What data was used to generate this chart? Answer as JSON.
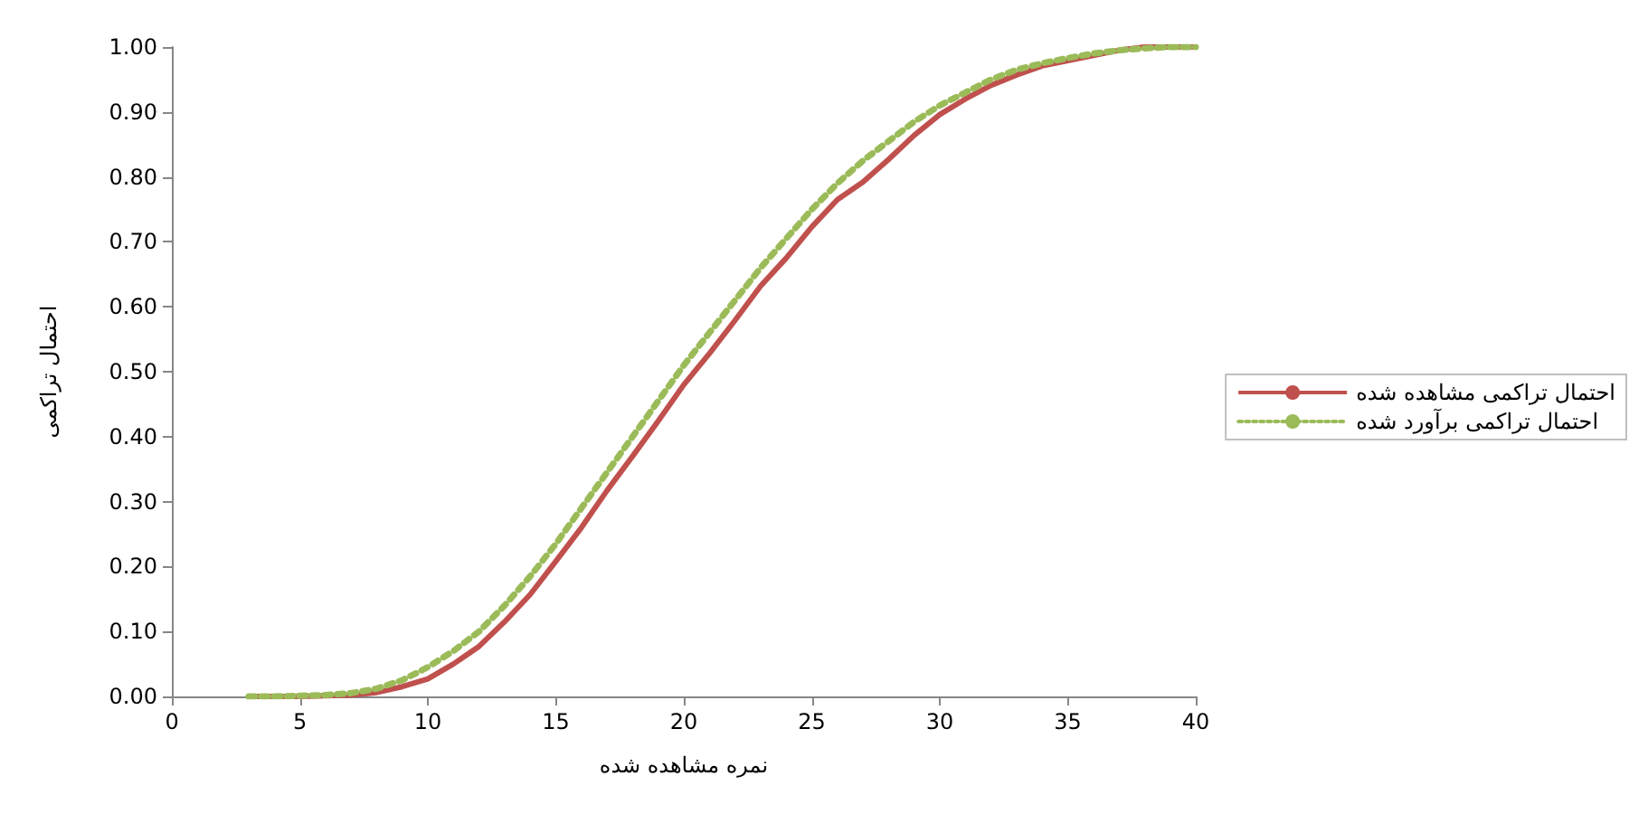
{
  "chart_data": {
    "type": "line",
    "xlabel": "نمره مشاهده شده",
    "ylabel": "احتمال تراکمی",
    "xlim": [
      0,
      40
    ],
    "xticks": [
      0,
      5,
      10,
      15,
      20,
      25,
      30,
      35,
      40
    ],
    "ylim": [
      0,
      1
    ],
    "yticks": [
      {
        "value": 0,
        "label": "0.00"
      },
      {
        "value": 0.1,
        "label": "0.10"
      },
      {
        "value": 0.2,
        "label": "0.20"
      },
      {
        "value": 0.3,
        "label": "0.30"
      },
      {
        "value": 0.4,
        "label": "0.40"
      },
      {
        "value": 0.5,
        "label": "0.50"
      },
      {
        "value": 0.6,
        "label": "0.60"
      },
      {
        "value": 0.7,
        "label": "0.70"
      },
      {
        "value": 0.8,
        "label": "0.80"
      },
      {
        "value": 0.9,
        "label": "0.90"
      },
      {
        "value": 1,
        "label": "1.00"
      }
    ],
    "grid": false,
    "legend": "right",
    "marker": "none",
    "x": [
      3,
      4,
      5,
      6,
      7,
      8,
      9,
      10,
      11,
      12,
      13,
      14,
      15,
      16,
      17,
      18,
      19,
      20,
      21,
      22,
      23,
      24,
      25,
      26,
      27,
      28,
      29,
      30,
      31,
      32,
      33,
      34,
      35,
      36,
      37,
      38,
      39,
      40
    ],
    "series": [
      {
        "name": "احتمال تراکمی مشاهده شده",
        "color": "#c0504d",
        "line_style": "solid",
        "values": [
          0,
          0,
          0,
          0.001,
          0.002,
          0.006,
          0.015,
          0.027,
          0.05,
          0.077,
          0.115,
          0.157,
          0.208,
          0.26,
          0.317,
          0.37,
          0.424,
          0.48,
          0.528,
          0.579,
          0.632,
          0.675,
          0.723,
          0.765,
          0.792,
          0.827,
          0.864,
          0.896,
          0.92,
          0.941,
          0.957,
          0.971,
          0.979,
          0.987,
          0.995,
          1,
          1,
          1
        ]
      },
      {
        "name": "احتمال تراکمی برآورد شده",
        "color": "#9bbb59",
        "line_style": "dotted",
        "values": [
          0,
          0,
          0.001,
          0.002,
          0.005,
          0.012,
          0.025,
          0.045,
          0.07,
          0.1,
          0.14,
          0.185,
          0.235,
          0.29,
          0.345,
          0.4,
          0.455,
          0.51,
          0.56,
          0.61,
          0.66,
          0.705,
          0.75,
          0.79,
          0.825,
          0.855,
          0.885,
          0.91,
          0.93,
          0.95,
          0.965,
          0.975,
          0.983,
          0.99,
          0.995,
          0.998,
          1,
          1
        ]
      }
    ]
  }
}
